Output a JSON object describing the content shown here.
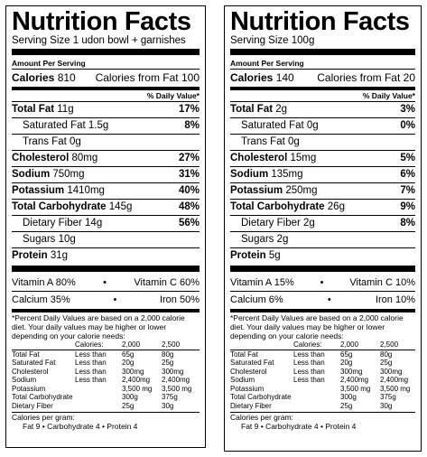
{
  "labels": [
    {
      "title": "Nutrition Facts",
      "serving": "Serving Size 1 udon bowl + garnishes",
      "amount_per_serving": "Amount Per Serving",
      "calories_label": "Calories",
      "calories": "810",
      "calories_fat_label": "Calories from Fat",
      "calories_fat": "100",
      "daily_value_header": "% Daily Value*",
      "nutrients": [
        {
          "label": "Total Fat",
          "amount": "11g",
          "pct": "17%",
          "bold": true
        },
        {
          "label": "Saturated Fat",
          "amount": "1.5g",
          "pct": "8%",
          "sub": true
        },
        {
          "label": "Trans Fat",
          "amount": "0g",
          "pct": "",
          "sub": true
        },
        {
          "label": "Cholesterol",
          "amount": "80mg",
          "pct": "27%",
          "bold": true
        },
        {
          "label": "Sodium",
          "amount": "750mg",
          "pct": "31%",
          "bold": true
        },
        {
          "label": "Potassium",
          "amount": "1410mg",
          "pct": "40%",
          "bold": true
        },
        {
          "label": "Total Carbohydrate",
          "amount": "145g",
          "pct": "48%",
          "bold": true
        },
        {
          "label": "Dietary Fiber",
          "amount": "14g",
          "pct": "56%",
          "sub": true
        },
        {
          "label": "Sugars",
          "amount": "10g",
          "pct": "",
          "sub": true
        },
        {
          "label": "Protein",
          "amount": "31g",
          "pct": "",
          "bold": true
        }
      ],
      "vitamins": [
        {
          "a_label": "Vitamin A",
          "a_val": "80%",
          "b_label": "Vitamin C",
          "b_val": "60%"
        },
        {
          "a_label": "Calcium",
          "a_val": "35%",
          "b_label": "Iron",
          "b_val": "50%"
        }
      ]
    },
    {
      "title": "Nutrition Facts",
      "serving": "Serving Size 100g",
      "amount_per_serving": "Amount Per Serving",
      "calories_label": "Calories",
      "calories": "140",
      "calories_fat_label": "Calories from Fat",
      "calories_fat": "20",
      "daily_value_header": "% Daily Value*",
      "nutrients": [
        {
          "label": "Total Fat",
          "amount": "2g",
          "pct": "3%",
          "bold": true
        },
        {
          "label": "Saturated Fat",
          "amount": "0g",
          "pct": "0%",
          "sub": true
        },
        {
          "label": "Trans Fat",
          "amount": "0g",
          "pct": "",
          "sub": true
        },
        {
          "label": "Cholesterol",
          "amount": "15mg",
          "pct": "5%",
          "bold": true
        },
        {
          "label": "Sodium",
          "amount": "135mg",
          "pct": "6%",
          "bold": true
        },
        {
          "label": "Potassium",
          "amount": "250mg",
          "pct": "7%",
          "bold": true
        },
        {
          "label": "Total Carbohydrate",
          "amount": "26g",
          "pct": "9%",
          "bold": true
        },
        {
          "label": "Dietary Fiber",
          "amount": "2g",
          "pct": "8%",
          "sub": true
        },
        {
          "label": "Sugars",
          "amount": "2g",
          "pct": "",
          "sub": true
        },
        {
          "label": "Protein",
          "amount": "5g",
          "pct": "",
          "bold": true
        }
      ],
      "vitamins": [
        {
          "a_label": "Vitamin A",
          "a_val": "15%",
          "b_label": "Vitamin C",
          "b_val": "10%"
        },
        {
          "a_label": "Calcium",
          "a_val": "6%",
          "b_label": "Iron",
          "b_val": "10%"
        }
      ]
    }
  ],
  "footnote": "*Percent Daily Values are based on a 2,000 calorie diet. Your daily values may be higher or lower depending on your calorie needs:",
  "dv_table": {
    "header": [
      "",
      "Calories:",
      "2,000",
      "2,500"
    ],
    "rows": [
      {
        "name": "Total Fat",
        "cmp": "Less than",
        "v1": "65g",
        "v2": "80g",
        "indent": false
      },
      {
        "name": "Saturated Fat",
        "cmp": "Less than",
        "v1": "20g",
        "v2": "25g",
        "indent": true
      },
      {
        "name": "Cholesterol",
        "cmp": "Less than",
        "v1": "300mg",
        "v2": "300mg",
        "indent": false
      },
      {
        "name": "Sodium",
        "cmp": "Less than",
        "v1": "2,400mg",
        "v2": "2,400mg",
        "indent": false
      },
      {
        "name": "Potassium",
        "cmp": "",
        "v1": "3,500 mg",
        "v2": "3,500 mg",
        "indent": false
      },
      {
        "name": "Total Carbohydrate",
        "cmp": "",
        "v1": "300g",
        "v2": "375g",
        "indent": false
      },
      {
        "name": "Dietary Fiber",
        "cmp": "",
        "v1": "25g",
        "v2": "30g",
        "indent": true
      }
    ]
  },
  "calories_per_gram": {
    "label": "Calories per gram:",
    "line": "Fat 9  •  Carbohydrate 4  •  Protein 4"
  },
  "dot": "•"
}
